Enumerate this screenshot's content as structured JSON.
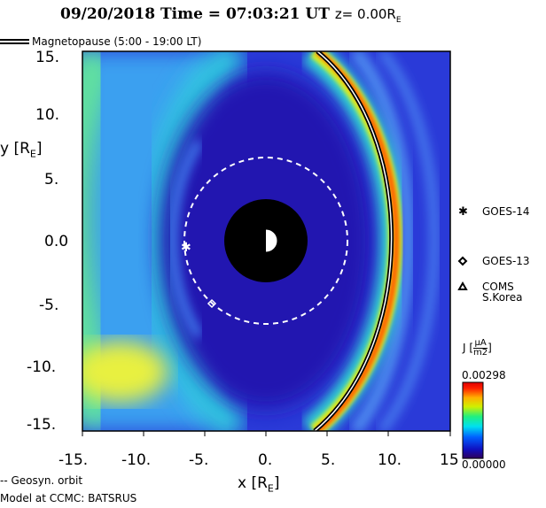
{
  "chart_data": {
    "type": "heatmap",
    "title": {
      "date": "09/20/2018",
      "time_label": "Time = 07:03:21 UT",
      "z_label": "z= 0.00R",
      "z_sub": "E"
    },
    "xlabel": "x [R",
    "xlabel_sub": "E",
    "xlabel_end": "]",
    "ylabel": "y [R",
    "ylabel_sub": "E",
    "ylabel_end": "]",
    "xlim": [
      -15,
      15
    ],
    "ylim": [
      -15,
      15
    ],
    "x_ticks": [
      "-15.",
      "-10.",
      "-5.",
      "0.",
      "5.",
      "10.",
      "15"
    ],
    "y_ticks": [
      "15.",
      "10.",
      "5.",
      "0.0",
      "-5.",
      "-10.",
      "-15."
    ],
    "magnetopause_label": "Magnetopause (5:00 - 19:00 LT)",
    "geosyn_label": "-- Geosyn. orbit",
    "model_label": "Model at CCMC: BATSRUS",
    "earth_radius_re": 3.4,
    "geosyn_radius_re": 6.6,
    "satellites": [
      {
        "name": "GOES-14",
        "symbol": "asterisk",
        "x": -6.6,
        "y": -0.4
      },
      {
        "name": "GOES-13",
        "symbol": "diamond",
        "x": -4.5,
        "y": -4.9
      },
      {
        "name": "COMS",
        "name2": "S.Korea",
        "symbol": "triangle"
      }
    ],
    "colorbar": {
      "label": "J",
      "unit_num": "μA",
      "unit_den": "m2",
      "max": "0.00298",
      "min": "0.00000",
      "colors": [
        "#30005a",
        "#1010c0",
        "#0060ff",
        "#00e0f0",
        "#20f080",
        "#d0f000",
        "#ffb000",
        "#ff2000",
        "#e00000"
      ]
    }
  }
}
